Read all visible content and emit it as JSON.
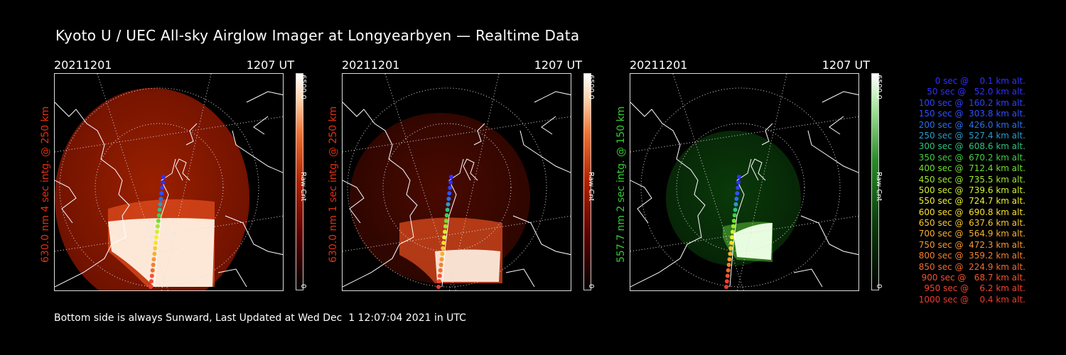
{
  "title": "Kyoto U / UEC All-sky Airglow Imager at Longyearbyen — Realtime Data",
  "footer": "Bottom side is always Sunward, Last Updated at Wed Dec  1 12:07:04 2021 in UTC",
  "panels": [
    {
      "date": "20211201",
      "time": "1207 UT",
      "label": "630.0 nm  4 sec intg. @ 250 km",
      "label_color": "#e03010",
      "colorbar_max": "6500.0",
      "colorbar_unit": "Raw Cnt",
      "colorbar_min": "0",
      "colormap": "red",
      "brightness": 0.9
    },
    {
      "date": "20211201",
      "time": "1207 UT",
      "label": "630.0 nm  1 sec intg. @ 250 km",
      "label_color": "#e03010",
      "colorbar_max": "6500.0",
      "colorbar_unit": "Raw Cnt",
      "colorbar_min": "0",
      "colormap": "red",
      "brightness": 0.55
    },
    {
      "date": "20211201",
      "time": "1207 UT",
      "label": "557.7 nm  2 sec intg. @ 150 km",
      "label_color": "#33cc33",
      "colorbar_max": "6500.0",
      "colorbar_unit": "Raw Cnt",
      "colorbar_min": "0",
      "colormap": "green",
      "brightness": 0.5
    }
  ],
  "legend": [
    {
      "text": "0 sec @    0.1 km alt.",
      "color": "#3030ff"
    },
    {
      "text": "50 sec @   52.0 km alt.",
      "color": "#3030ff"
    },
    {
      "text": "100 sec @  160.2 km alt.",
      "color": "#3040ff"
    },
    {
      "text": "150 sec @  303.8 km alt.",
      "color": "#3050ff"
    },
    {
      "text": "200 sec @  426.0 km alt.",
      "color": "#2a70ee"
    },
    {
      "text": "250 sec @  527.4 km alt.",
      "color": "#2a9acc"
    },
    {
      "text": "300 sec @  608.6 km alt.",
      "color": "#30c080"
    },
    {
      "text": "350 sec @  670.2 km alt.",
      "color": "#40d040"
    },
    {
      "text": "400 sec @  712.4 km alt.",
      "color": "#70e030"
    },
    {
      "text": "450 sec @  735.5 km alt.",
      "color": "#a0e830"
    },
    {
      "text": "500 sec @  739.6 km alt.",
      "color": "#d0f030"
    },
    {
      "text": "550 sec @  724.7 km alt.",
      "color": "#f0f030"
    },
    {
      "text": "600 sec @  690.8 km alt.",
      "color": "#f8e030"
    },
    {
      "text": "650 sec @  637.6 km alt.",
      "color": "#f8c830"
    },
    {
      "text": "700 sec @  564.9 km alt.",
      "color": "#f8b030"
    },
    {
      "text": "750 sec @  472.3 km alt.",
      "color": "#f89830"
    },
    {
      "text": "800 sec @  359.2 km alt.",
      "color": "#f08030"
    },
    {
      "text": "850 sec @  224.9 km alt.",
      "color": "#f06a30"
    },
    {
      "text": "900 sec @   68.7 km alt.",
      "color": "#f05530"
    },
    {
      "text": "950 sec @    6.2 km alt.",
      "color": "#f04530"
    },
    {
      "text": "1000 sec @    0.4 km alt.",
      "color": "#f03a30"
    }
  ]
}
